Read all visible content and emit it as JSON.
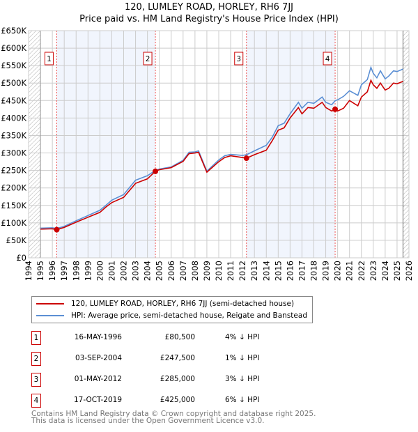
{
  "chart_data": {
    "type": "line",
    "title": "120, LUMLEY ROAD, HORLEY, RH6 7JJ",
    "subtitle": "Price paid vs. HM Land Registry's House Price Index (HPI)",
    "xlim": [
      1994,
      2026
    ],
    "ylim": [
      0,
      650000
    ],
    "x_ticks": [
      "1994",
      "1995",
      "1996",
      "1997",
      "1998",
      "1999",
      "2000",
      "2001",
      "2002",
      "2003",
      "2004",
      "2005",
      "2006",
      "2007",
      "2008",
      "2009",
      "2010",
      "2011",
      "2012",
      "2013",
      "2014",
      "2015",
      "2016",
      "2017",
      "2018",
      "2019",
      "2020",
      "2021",
      "2022",
      "2023",
      "2024",
      "2025",
      "2026"
    ],
    "y_ticks": [
      "£0",
      "£50K",
      "£100K",
      "£150K",
      "£200K",
      "£250K",
      "£300K",
      "£350K",
      "£400K",
      "£450K",
      "£500K",
      "£550K",
      "£600K",
      "£650K"
    ],
    "grid": true,
    "series": [
      {
        "name": "120, LUMLEY ROAD, HORLEY, RH6 7JJ (semi-detached house)",
        "color": "#cc0000",
        "x": [
          1995,
          1996,
          1996.37,
          1997,
          1998,
          1999,
          2000,
          2000.5,
          2001,
          2002,
          2003,
          2004,
          2004.67,
          2005,
          2006,
          2007,
          2007.5,
          2008,
          2008.3,
          2009,
          2010,
          2010.5,
          2011,
          2012,
          2012.33,
          2013,
          2014,
          2014.5,
          2015,
          2015.5,
          2016,
          2016.7,
          2017,
          2017.5,
          2018,
          2018.7,
          2019,
          2019.5,
          2019.8,
          2020,
          2020.5,
          2021,
          2021.7,
          2022,
          2022.5,
          2022.8,
          2023,
          2023.3,
          2023.6,
          2024,
          2024.3,
          2024.7,
          2025,
          2025.5
        ],
        "y": [
          82000,
          83000,
          80500,
          87000,
          102000,
          116000,
          130000,
          145000,
          158000,
          173000,
          213000,
          226000,
          247500,
          252000,
          258000,
          276000,
          298000,
          300000,
          302000,
          245000,
          275000,
          287000,
          292000,
          287000,
          285000,
          295000,
          308000,
          335000,
          365000,
          372000,
          400000,
          430000,
          412000,
          430000,
          428000,
          445000,
          430000,
          420000,
          425000,
          420000,
          428000,
          450000,
          435000,
          460000,
          475000,
          508000,
          495000,
          485000,
          500000,
          480000,
          485000,
          500000,
          498000,
          505000
        ]
      },
      {
        "name": "HPI: Average price, semi-detached house, Reigate and Banstead",
        "color": "#5b8fd4",
        "x": [
          1995,
          1996,
          1996.37,
          1997,
          1998,
          1999,
          2000,
          2000.5,
          2001,
          2002,
          2003,
          2004,
          2004.67,
          2005,
          2006,
          2007,
          2007.5,
          2008,
          2008.3,
          2009,
          2010,
          2010.5,
          2011,
          2012,
          2012.33,
          2013,
          2014,
          2014.5,
          2015,
          2015.5,
          2016,
          2016.7,
          2017,
          2017.5,
          2018,
          2018.7,
          2019,
          2019.5,
          2019.8,
          2020,
          2020.5,
          2021,
          2021.7,
          2022,
          2022.5,
          2022.8,
          2023,
          2023.3,
          2023.6,
          2024,
          2024.3,
          2024.7,
          2025,
          2025.5
        ],
        "y": [
          85000,
          86000,
          84000,
          90000,
          106000,
          121000,
          136000,
          150000,
          165000,
          181000,
          222000,
          235000,
          250000,
          254000,
          260000,
          279000,
          302000,
          303000,
          306000,
          248000,
          280000,
          292000,
          296000,
          293000,
          295000,
          306000,
          322000,
          345000,
          378000,
          385000,
          412000,
          445000,
          428000,
          445000,
          442000,
          460000,
          445000,
          438000,
          450000,
          452000,
          462000,
          478000,
          465000,
          495000,
          510000,
          545000,
          528000,
          515000,
          535000,
          512000,
          520000,
          535000,
          533000,
          540000
        ]
      }
    ],
    "sales": [
      {
        "label": "1",
        "date": "16-MAY-1996",
        "x": 1996.37,
        "price": 80500,
        "price_label": "£80,500",
        "hpi": "4% ↓ HPI"
      },
      {
        "label": "2",
        "date": "03-SEP-2004",
        "x": 2004.67,
        "price": 247500,
        "price_label": "£247,500",
        "hpi": "1% ↓ HPI"
      },
      {
        "label": "3",
        "date": "01-MAY-2012",
        "x": 2012.33,
        "price": 285000,
        "price_label": "£285,000",
        "hpi": "3% ↓ HPI"
      },
      {
        "label": "4",
        "date": "17-OCT-2019",
        "x": 2019.79,
        "price": 425000,
        "price_label": "£425,000",
        "hpi": "6% ↓ HPI"
      }
    ],
    "data_range": [
      1995,
      2025.5
    ]
  },
  "footer": {
    "line1": "Contains HM Land Registry data © Crown copyright and database right 2025.",
    "line2": "This data is licensed under the Open Government Licence v3.0."
  }
}
